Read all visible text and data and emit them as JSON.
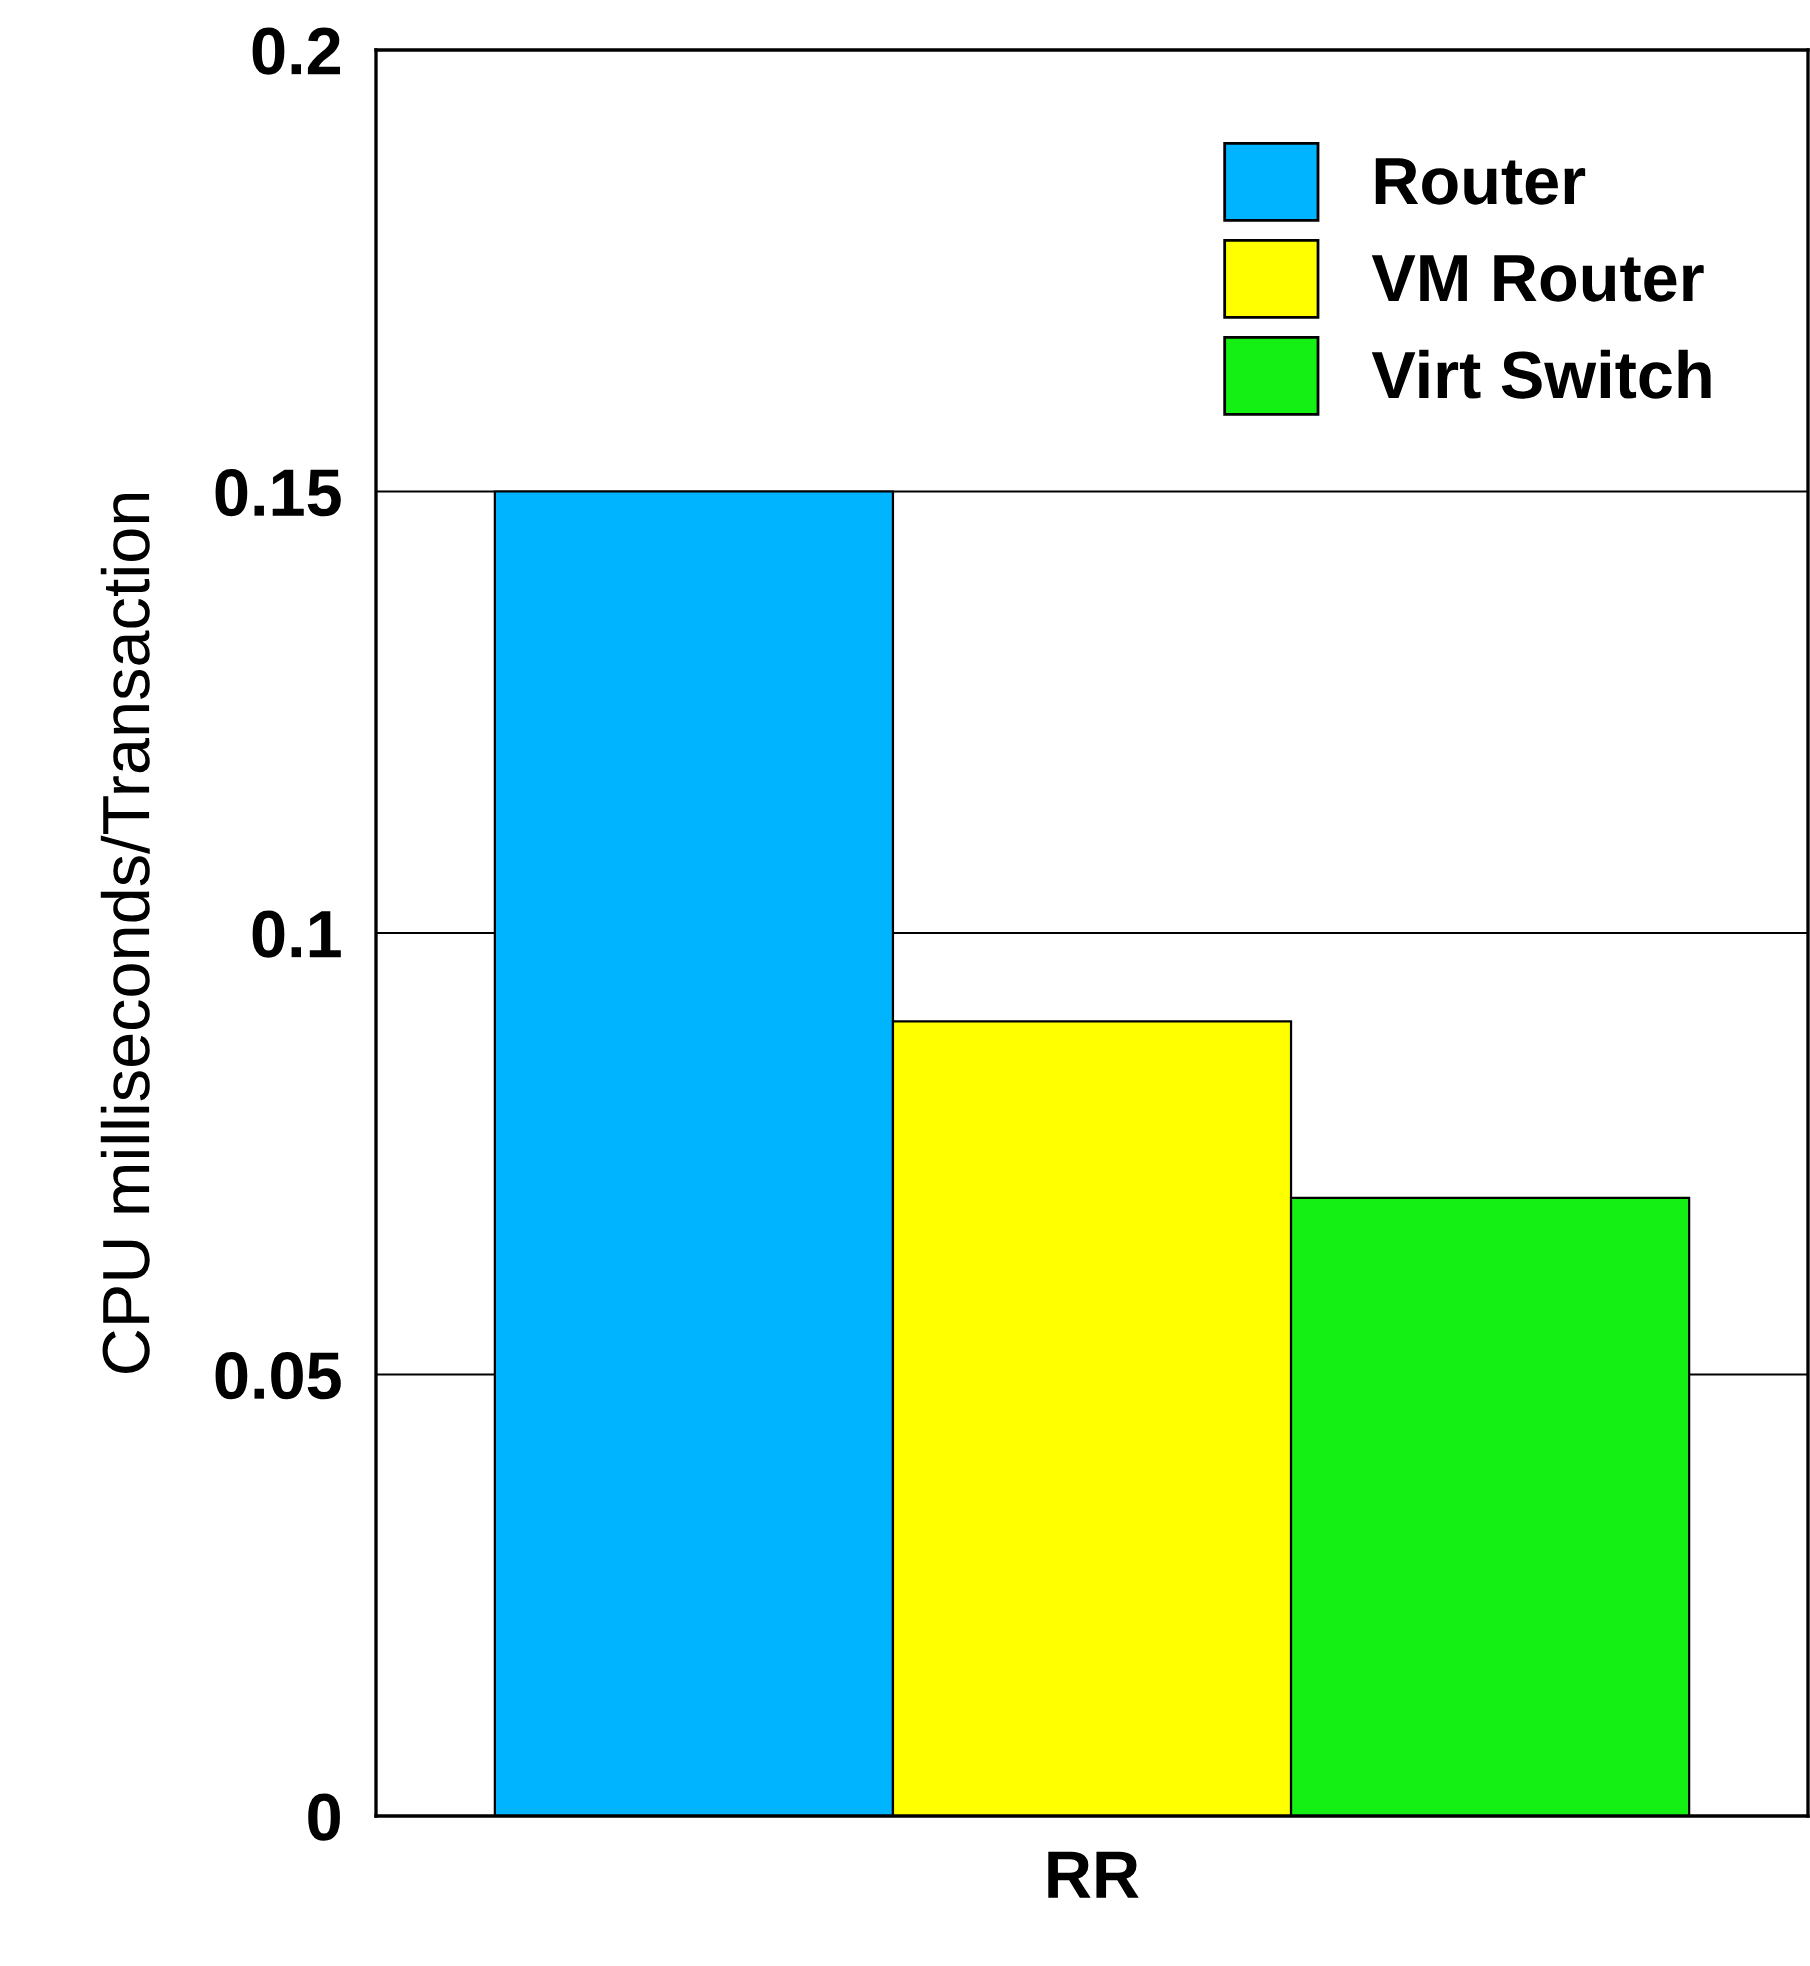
{
  "chart_data": {
    "type": "bar",
    "ylabel": "CPU milliseconds/Transaction",
    "categories": [
      "RR"
    ],
    "series": [
      {
        "name": "Router",
        "color": "#00b4ff",
        "values": [
          0.15
        ]
      },
      {
        "name": "VM Router",
        "color": "#ffff00",
        "values": [
          0.09
        ]
      },
      {
        "name": "Virt Switch",
        "color": "#14f014",
        "values": [
          0.07
        ]
      }
    ],
    "ylim": [
      0,
      0.2
    ],
    "yticks": [
      {
        "value": 0,
        "label": "0"
      },
      0.05,
      0.1,
      0.15,
      0.2
    ],
    "grid": "y",
    "legend": "top right"
  }
}
